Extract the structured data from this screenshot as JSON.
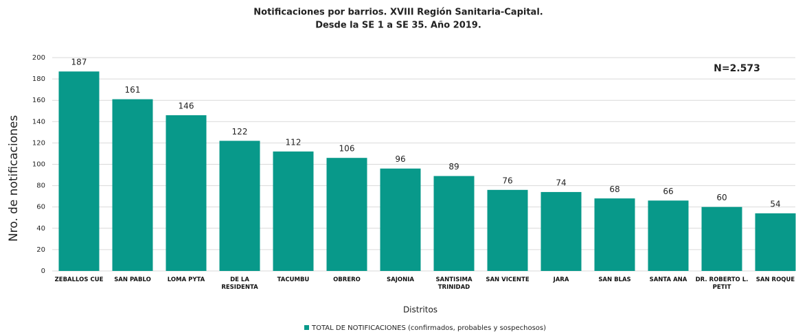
{
  "chart_data": {
    "type": "bar",
    "title": "Notificaciones por barrios. XVIII Región Sanitaria-Capital.",
    "subtitle": "Desde la SE 1 a SE 35. Año 2019.",
    "annotation": "N=2.573",
    "x_label": "Distritos",
    "y_label": "Nro. de notificaciones",
    "categories": [
      "ZEBALLOS CUE",
      "SAN PABLO",
      "LOMA PYTA",
      "DE LA\nRESIDENTA",
      "TACUMBU",
      "OBRERO",
      "SAJONIA",
      "SANTISIMA\nTRINIDAD",
      "SAN VICENTE",
      "JARA",
      "SAN BLAS",
      "SANTA ANA",
      "DR. ROBERTO L.\nPETIT",
      "SAN ROQUE"
    ],
    "series": [
      {
        "name": "TOTAL DE NOTIFICACIONES (confirmados, probables y sospechosos)",
        "color": "#08998a",
        "values": [
          187,
          161,
          146,
          122,
          112,
          106,
          96,
          89,
          76,
          74,
          68,
          66,
          60,
          54
        ]
      }
    ],
    "ylim": [
      0,
      200
    ],
    "yticks": [
      0,
      20,
      40,
      60,
      80,
      100,
      120,
      140,
      160,
      180,
      200
    ],
    "grid": true,
    "legend": "bottom"
  }
}
